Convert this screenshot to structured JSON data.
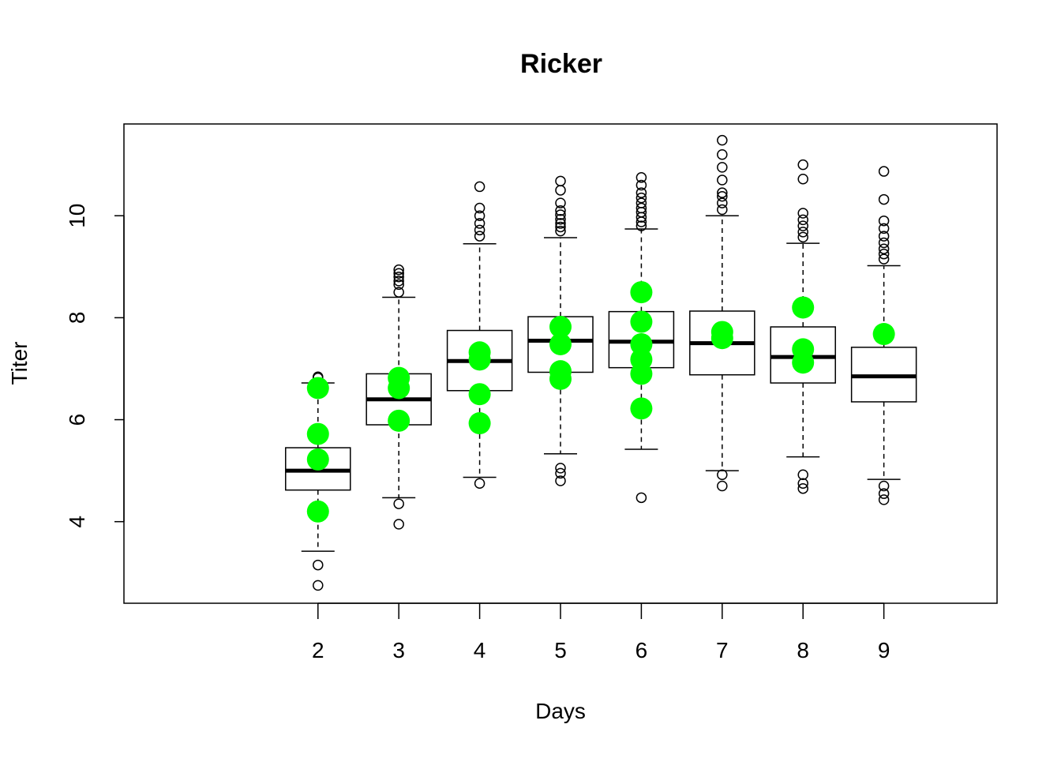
{
  "chart_data": {
    "type": "boxplot",
    "title": "Ricker",
    "xlabel": "Days",
    "ylabel": "Titer",
    "categories": [
      "2",
      "3",
      "4",
      "5",
      "6",
      "7",
      "8",
      "9"
    ],
    "y_ticks": [
      4,
      6,
      8,
      10
    ],
    "xlim": [
      -0.4,
      10.4
    ],
    "ylim": [
      2.4,
      11.8
    ],
    "grid": false,
    "legend": "none",
    "box_color": "#000000",
    "point_color": "#00ff00",
    "boxes": [
      {
        "x": 2,
        "q1": 4.62,
        "median": 5.0,
        "q3": 5.45,
        "whisker_low": 3.42,
        "whisker_high": 6.72,
        "outliers": [
          3.15,
          2.75,
          6.82,
          6.84
        ]
      },
      {
        "x": 3,
        "q1": 5.9,
        "median": 6.4,
        "q3": 6.9,
        "whisker_low": 4.47,
        "whisker_high": 8.4,
        "outliers": [
          4.35,
          3.95,
          8.5,
          8.65,
          8.72,
          8.8,
          8.87,
          8.94
        ]
      },
      {
        "x": 4,
        "q1": 6.57,
        "median": 7.15,
        "q3": 7.75,
        "whisker_low": 4.87,
        "whisker_high": 9.45,
        "outliers": [
          4.75,
          9.6,
          9.72,
          9.85,
          10.0,
          10.15,
          10.57
        ]
      },
      {
        "x": 5,
        "q1": 6.93,
        "median": 7.55,
        "q3": 8.02,
        "whisker_low": 5.33,
        "whisker_high": 9.57,
        "outliers": [
          5.05,
          4.95,
          4.8,
          9.7,
          9.78,
          9.85,
          9.93,
          10.02,
          10.1,
          10.25,
          10.5,
          10.68
        ]
      },
      {
        "x": 6,
        "q1": 7.02,
        "median": 7.53,
        "q3": 8.12,
        "whisker_low": 5.42,
        "whisker_high": 9.74,
        "outliers": [
          4.47,
          9.8,
          9.88,
          9.97,
          10.07,
          10.15,
          10.25,
          10.35,
          10.45,
          10.6,
          10.75
        ]
      },
      {
        "x": 7,
        "q1": 6.88,
        "median": 7.5,
        "q3": 8.13,
        "whisker_low": 5.0,
        "whisker_high": 10.0,
        "outliers": [
          4.92,
          4.7,
          10.12,
          10.25,
          10.38,
          10.45,
          10.7,
          10.95,
          11.2,
          11.48
        ]
      },
      {
        "x": 8,
        "q1": 6.72,
        "median": 7.23,
        "q3": 7.82,
        "whisker_low": 5.27,
        "whisker_high": 9.46,
        "outliers": [
          4.92,
          4.75,
          4.65,
          9.58,
          9.68,
          9.8,
          9.92,
          10.05,
          10.72,
          11.0
        ]
      },
      {
        "x": 9,
        "q1": 6.35,
        "median": 6.85,
        "q3": 7.42,
        "whisker_low": 4.83,
        "whisker_high": 9.02,
        "outliers": [
          4.7,
          4.55,
          4.43,
          9.15,
          9.25,
          9.35,
          9.47,
          9.6,
          9.75,
          9.9,
          10.32,
          10.87
        ]
      }
    ],
    "observed": [
      {
        "x": 2,
        "y": [
          6.62,
          5.72,
          5.22,
          4.2
        ]
      },
      {
        "x": 3,
        "y": [
          6.82,
          6.62,
          5.98
        ]
      },
      {
        "x": 4,
        "y": [
          7.32,
          7.18,
          6.5,
          5.93
        ]
      },
      {
        "x": 5,
        "y": [
          7.82,
          7.48,
          6.95,
          6.8
        ]
      },
      {
        "x": 6,
        "y": [
          8.5,
          7.92,
          7.48,
          7.18,
          6.9,
          6.22
        ]
      },
      {
        "x": 7,
        "y": [
          7.72,
          7.6
        ]
      },
      {
        "x": 8,
        "y": [
          8.2,
          7.38,
          7.12
        ]
      },
      {
        "x": 9,
        "y": [
          7.68
        ]
      }
    ]
  }
}
